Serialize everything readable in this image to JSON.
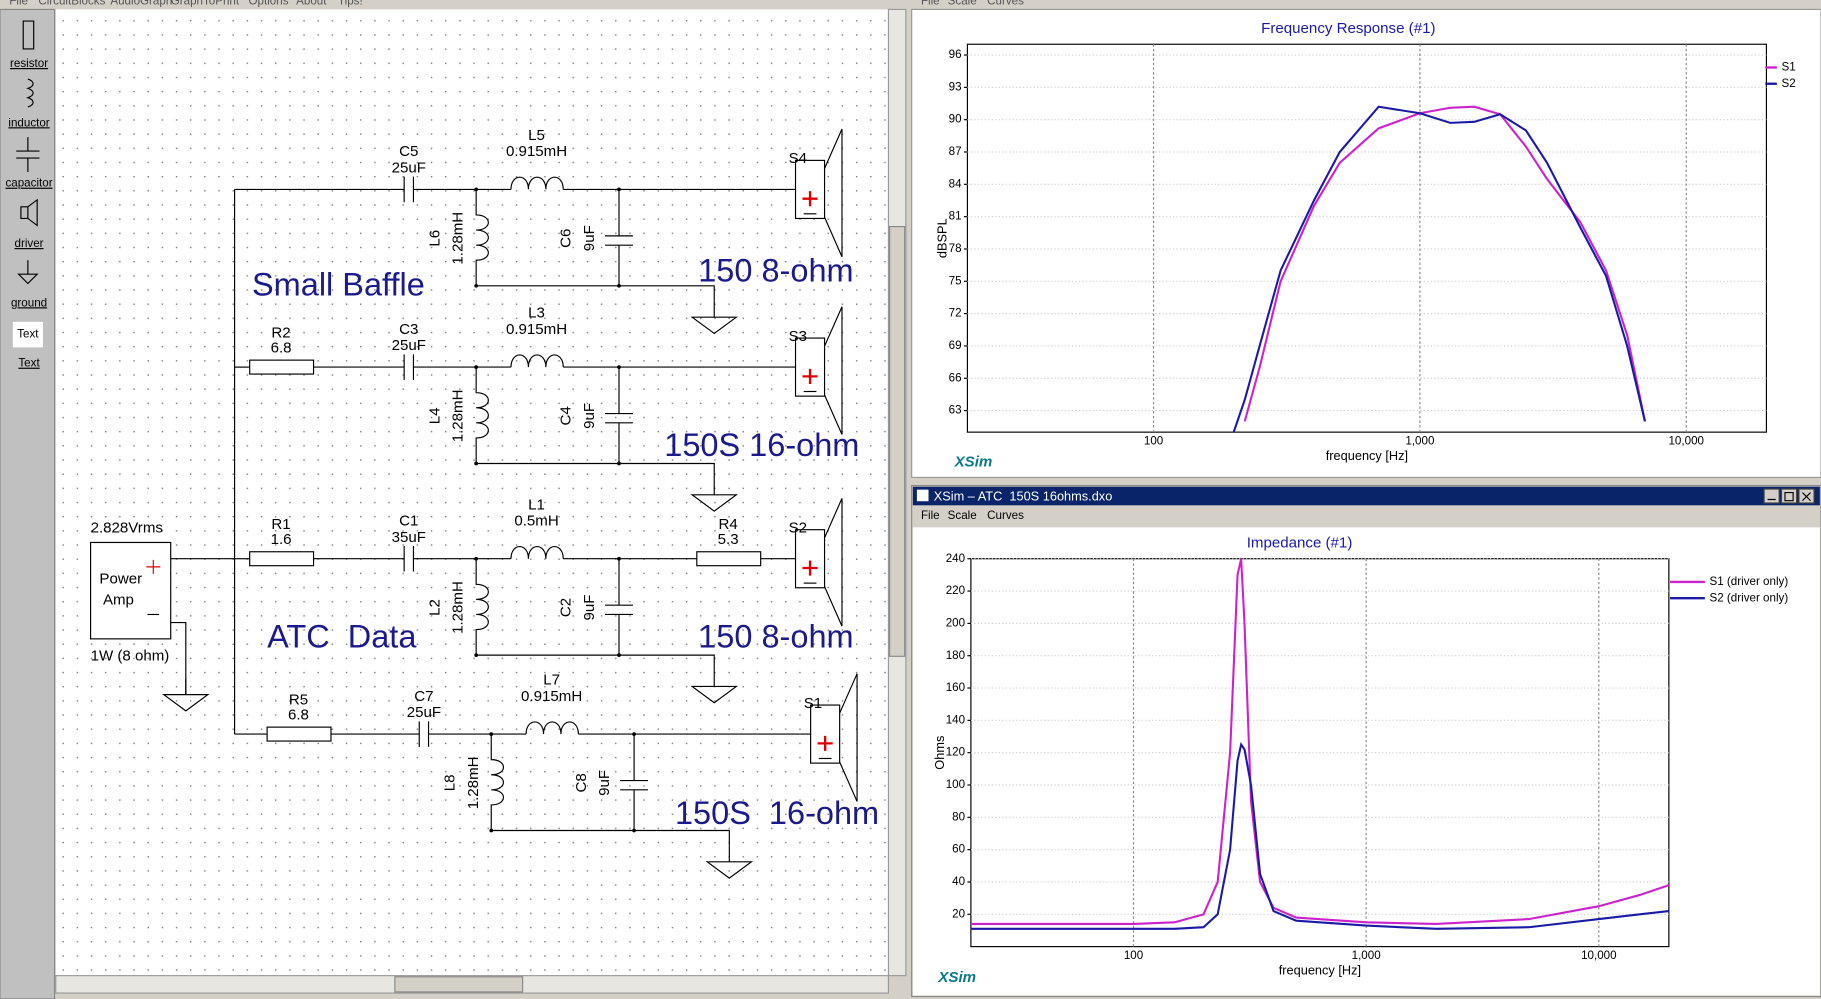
{
  "menu": [
    "File",
    "CircuitBlocks",
    "AudioGraph",
    "GraphToPrint",
    "Options",
    "About",
    "Tips!"
  ],
  "toolbox": [
    "resistor",
    "inductor",
    "capacitor",
    "driver",
    "ground",
    "Text",
    "Text"
  ],
  "schematic": {
    "source": {
      "voltage": "2.828Vrms",
      "name": [
        "Power",
        "Amp"
      ],
      "power": "1W (8 ohm)"
    },
    "notes": [
      "Small Baffle",
      "ATC  Data"
    ],
    "rows": [
      {
        "cap": {
          "name": "C5",
          "value": "25uF"
        },
        "ind": {
          "name": "L5",
          "value": "0.915mH"
        },
        "shunt_l": {
          "name": "L6",
          "value": "1.28mH"
        },
        "shunt_c": {
          "name": "C6",
          "value": "9uF"
        },
        "driver": "S4",
        "label": "150 8-ohm"
      },
      {
        "res": {
          "name": "R2",
          "value": "6.8"
        },
        "cap": {
          "name": "C3",
          "value": "25uF"
        },
        "ind": {
          "name": "L3",
          "value": "0.915mH"
        },
        "shunt_l": {
          "name": "L4",
          "value": "1.28mH"
        },
        "shunt_c": {
          "name": "C4",
          "value": "9uF"
        },
        "driver": "S3",
        "label": "150S 16-ohm"
      },
      {
        "res": {
          "name": "R1",
          "value": "1.6"
        },
        "cap": {
          "name": "C1",
          "value": "35uF"
        },
        "ind": {
          "name": "L1",
          "value": "0.5mH"
        },
        "res_out": {
          "name": "R4",
          "value": "5.3"
        },
        "shunt_l": {
          "name": "L2",
          "value": "1.28mH"
        },
        "shunt_c": {
          "name": "C2",
          "value": "9uF"
        },
        "driver": "S2",
        "label": "150 8-ohm"
      },
      {
        "res": {
          "name": "R5",
          "value": "6.8"
        },
        "cap": {
          "name": "C7",
          "value": "25uF"
        },
        "ind": {
          "name": "L7",
          "value": "0.915mH"
        },
        "shunt_l": {
          "name": "L8",
          "value": "1.28mH"
        },
        "shunt_c": {
          "name": "C8",
          "value": "9uF"
        },
        "driver": "S1",
        "label": "150S  16-ohm"
      }
    ]
  },
  "graph_menu": [
    "File",
    "Scale",
    "Curves"
  ],
  "impedance_window": {
    "title": "XSim – ATC  150S 16ohms.dxo",
    "menu": [
      "File",
      "Scale",
      "Curves"
    ]
  },
  "logo": "XSim",
  "chart_data": [
    {
      "type": "line",
      "title": "Frequency Response (#1)",
      "x_label": "frequency [Hz]",
      "y_label": "dBSPL",
      "xscale": "log",
      "xlim": [
        20,
        20000
      ],
      "xticks": [
        100,
        {
          "value": 1000,
          "label": "1,000"
        },
        {
          "value": 10000,
          "label": "10,000"
        }
      ],
      "ylim": [
        61,
        97
      ],
      "yticks": [
        63,
        66,
        69,
        72,
        75,
        78,
        81,
        84,
        87,
        90,
        93,
        96
      ],
      "grid": true,
      "legend": "right",
      "x": [
        200,
        220,
        250,
        300,
        400,
        500,
        700,
        1000,
        1300,
        1600,
        2000,
        2500,
        3000,
        4000,
        5000,
        6000,
        7000,
        7500
      ],
      "series": [
        {
          "name": "S1",
          "color": "#cc22cc",
          "values": [
            null,
            62,
            67,
            75,
            82,
            86,
            89.2,
            90.6,
            91.1,
            91.2,
            90.5,
            87.5,
            84.5,
            80.5,
            76,
            70,
            62,
            null
          ]
        },
        {
          "name": "S2",
          "color": "#1a1aa6",
          "values": [
            61,
            64,
            69,
            76,
            82.5,
            87,
            91.2,
            90.6,
            89.7,
            89.8,
            90.5,
            89,
            86,
            80,
            75.5,
            69,
            62,
            null
          ]
        }
      ]
    },
    {
      "type": "line",
      "title": "Impedance (#1)",
      "x_label": "frequency [Hz]",
      "y_label": "Ohms",
      "xscale": "log",
      "xlim": [
        20,
        20000
      ],
      "xticks": [
        100,
        {
          "value": 1000,
          "label": "1,000"
        },
        {
          "value": 10000,
          "label": "10,000"
        }
      ],
      "ylim": [
        0,
        240
      ],
      "yticks": [
        20,
        40,
        60,
        80,
        100,
        120,
        140,
        160,
        180,
        200,
        220,
        240
      ],
      "grid": true,
      "legend": "right",
      "x": [
        20,
        100,
        150,
        200,
        230,
        260,
        280,
        290,
        300,
        320,
        350,
        400,
        500,
        1000,
        2000,
        5000,
        10000,
        15000,
        20000
      ],
      "series": [
        {
          "name": "S1 (driver only)",
          "color": "#cc22cc",
          "values": [
            14,
            14,
            15,
            20,
            40,
            120,
            230,
            240,
            200,
            90,
            40,
            24,
            18,
            15,
            14,
            17,
            25,
            32,
            38
          ]
        },
        {
          "name": "S2 (driver only)",
          "color": "#1a1aa6",
          "values": [
            11,
            11,
            11,
            12,
            20,
            60,
            115,
            125,
            122,
            100,
            45,
            22,
            16,
            13,
            11,
            12,
            17,
            20,
            22
          ]
        }
      ]
    }
  ]
}
